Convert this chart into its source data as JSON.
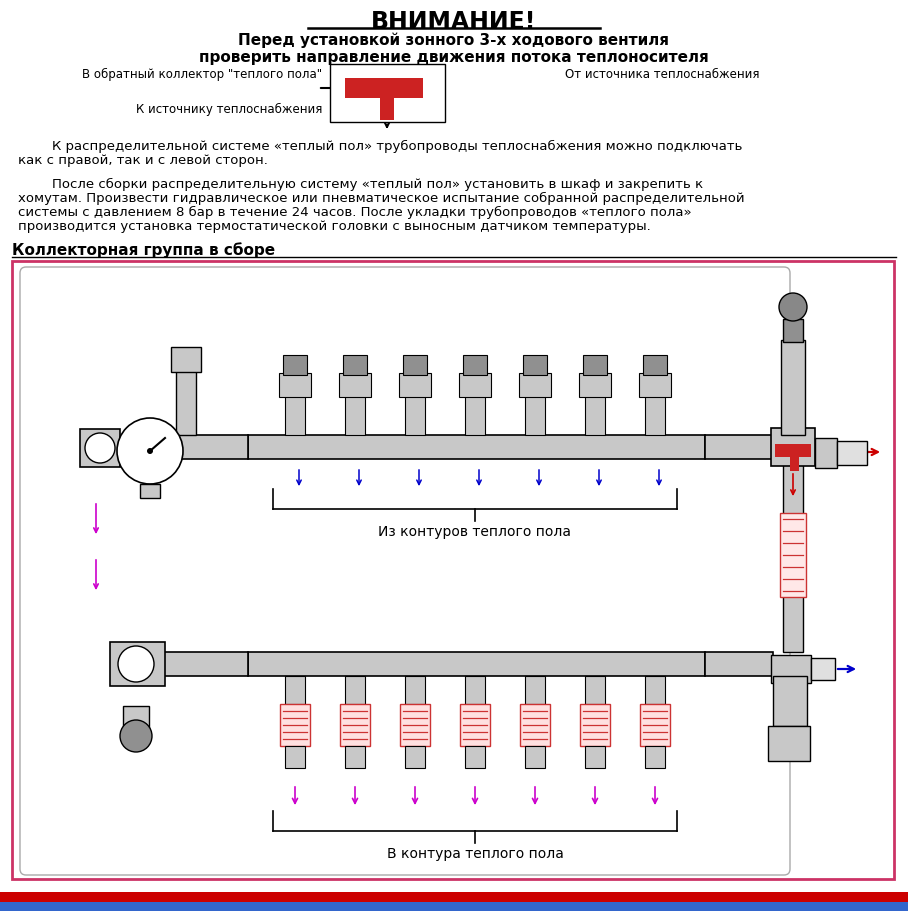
{
  "title": "ВНИМАНИЕ!",
  "subtitle1": "Перед установкой зонного 3-х ходового вентиля",
  "subtitle2": "проверить направление движения потока теплоносителя",
  "label_back_collector": "В обратный коллектор \"теплого пола\"",
  "label_from_source": "От источника теплоснабжения",
  "label_to_source": "К источнику теплоснабжения",
  "para1_line1": "        К распределительной системе «теплый пол» трубопроводы теплоснабжения можно подключать",
  "para1_line2": "как с правой, так и с левой сторон.",
  "para2_line1": "        После сборки распределительную систему «теплый пол» установить в шкаф и закрепить к",
  "para2_line2": "хомутам. Произвести гидравлическое или пневматическое испытание собранной распределительной",
  "para2_line3": "системы с давлением 8 бар в течение 24 часов. После укладки трубопроводов «теплого пола»",
  "para2_line4": "производится установка термостатической головки с выносным датчиком температуры.",
  "section_title": "Коллекторная группа в сборе",
  "label_from_circuits": "Из контуров теплого пола",
  "label_to_circuits": "В контура теплого пола",
  "bg_color": "#ffffff",
  "diagram_border_color": "#cc3366",
  "arrow_blue": "#0000cc",
  "arrow_magenta": "#cc00cc",
  "arrow_red": "#cc0000",
  "stripe_red": "#cc0000",
  "stripe_blue": "#3366cc",
  "col_gray": "#c8c8c8",
  "col_dark": "#909090"
}
